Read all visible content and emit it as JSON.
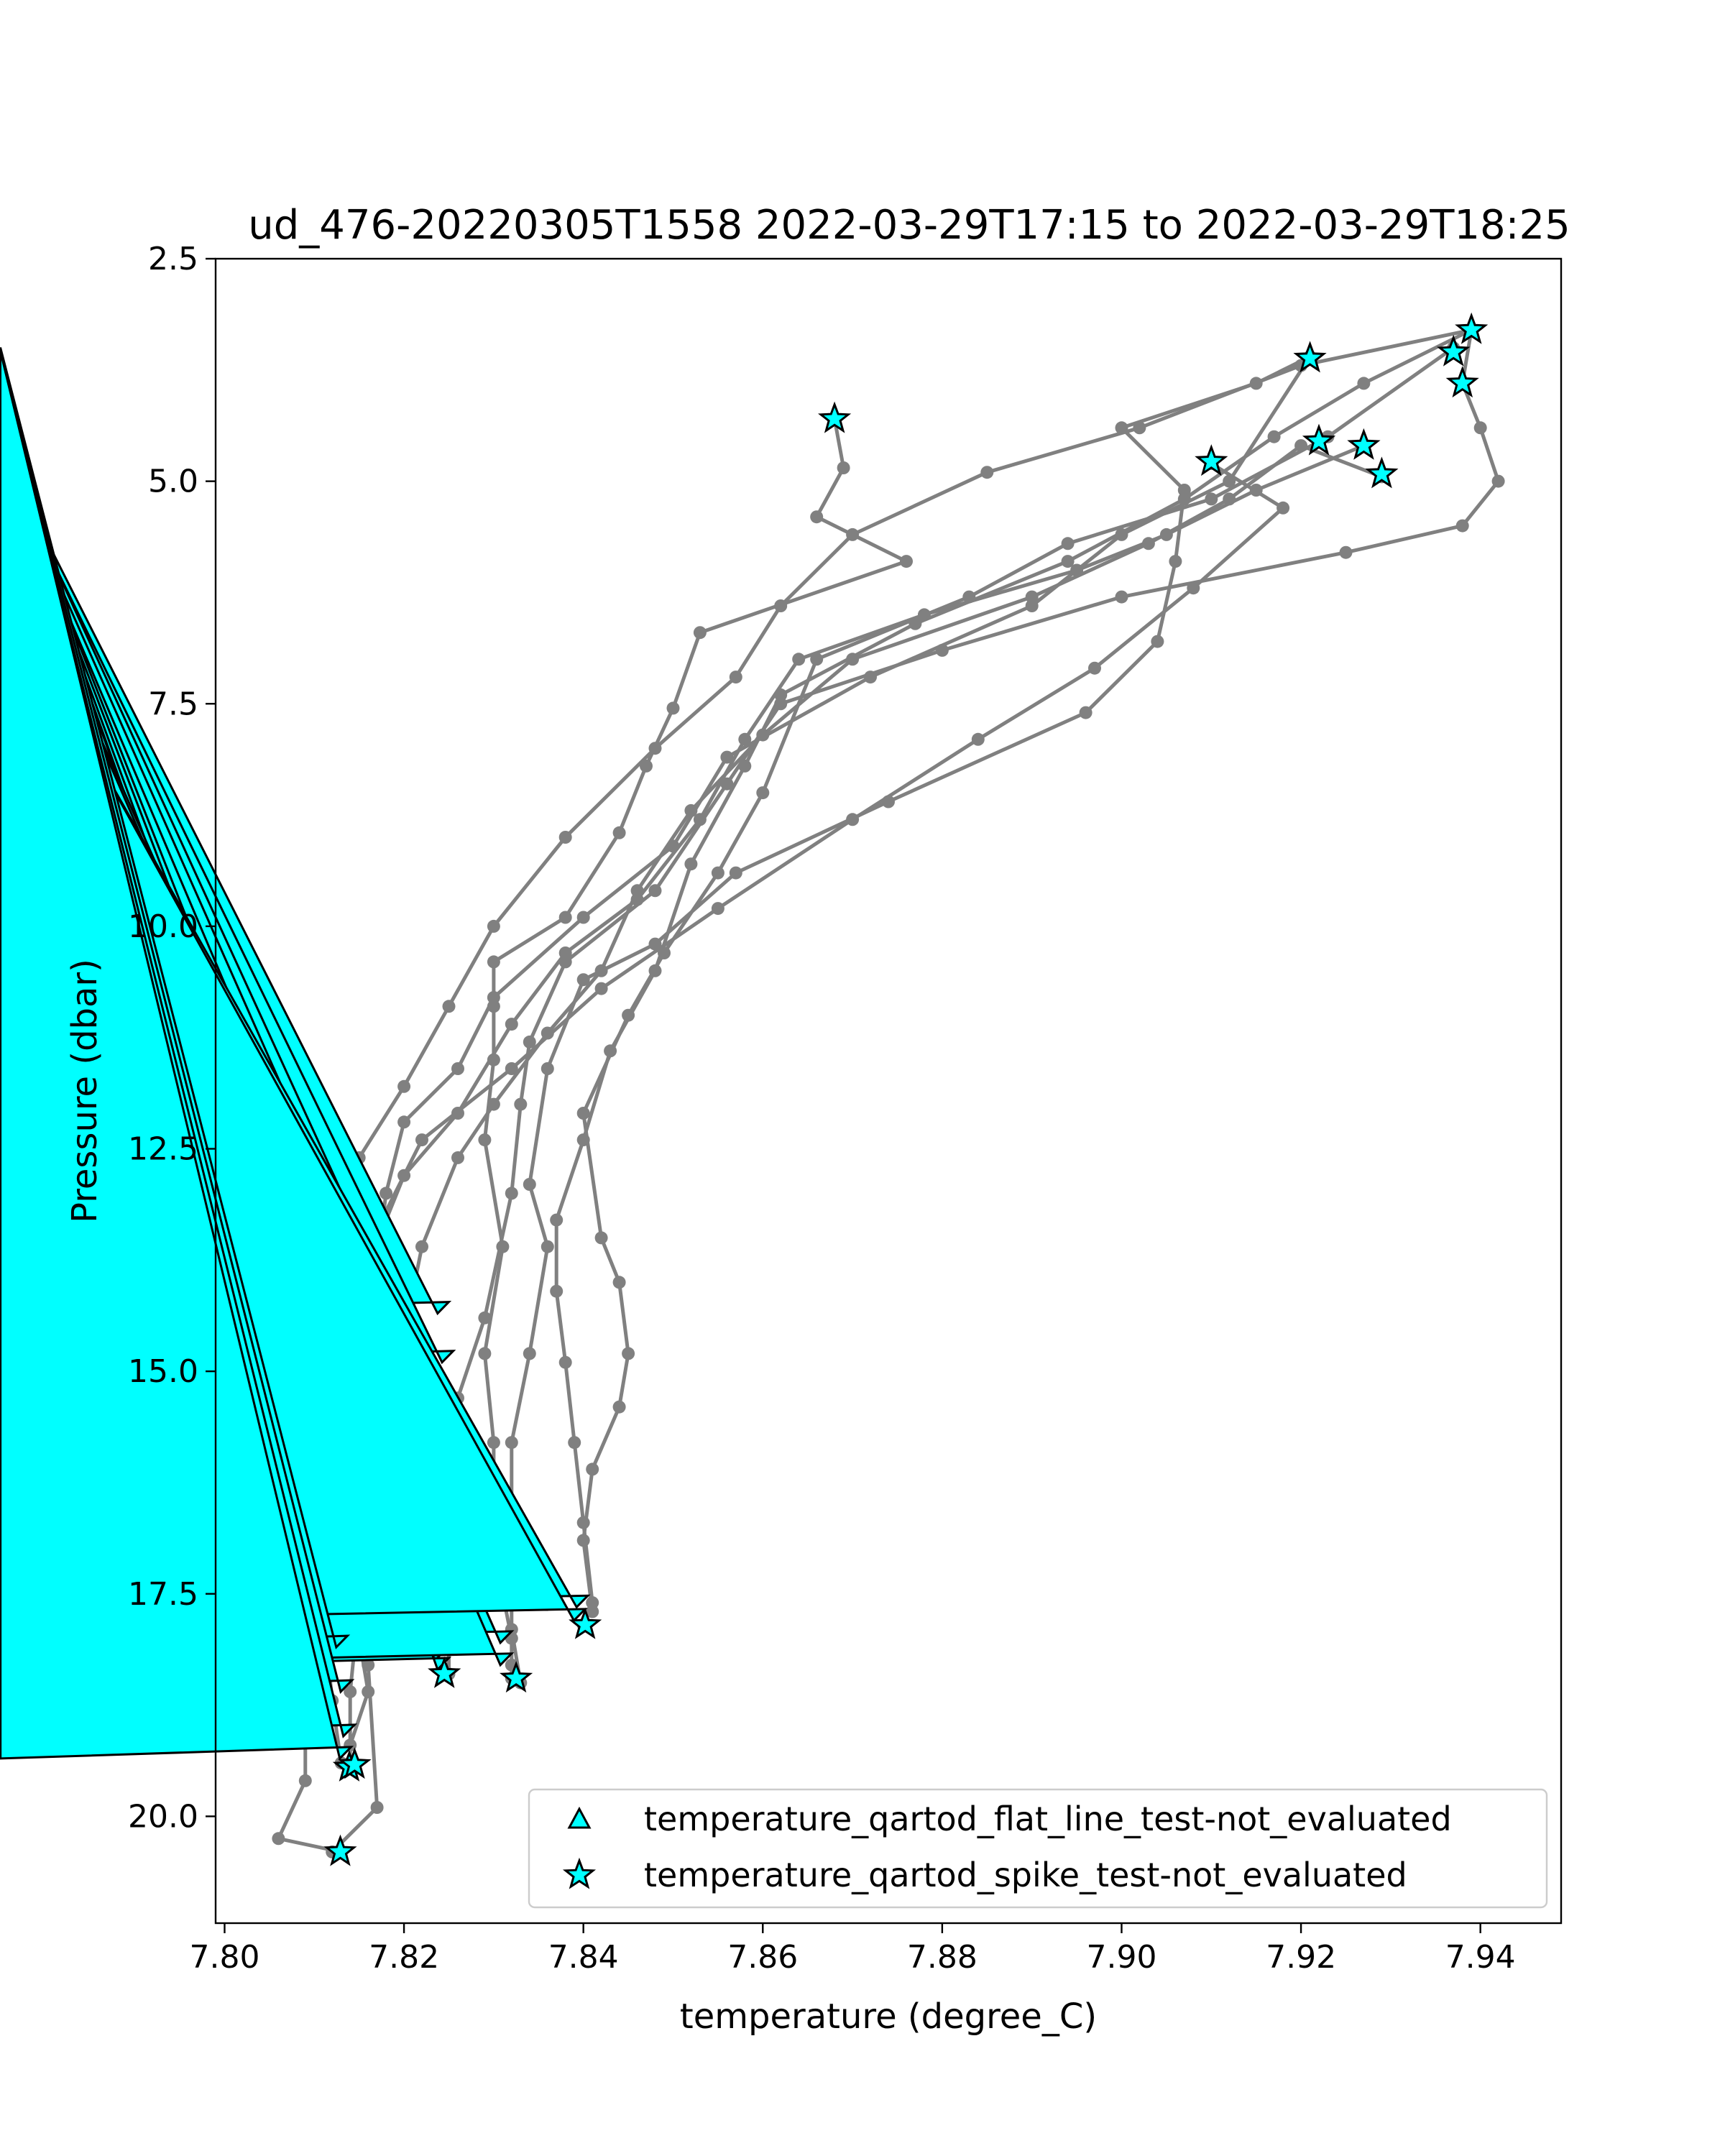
{
  "chart_data": {
    "type": "line",
    "title": "ud_476-20220305T1558 2022-03-29T17:15 to 2022-03-29T18:25",
    "xlabel": "temperature (degree_C)",
    "ylabel": "Pressure (dbar)",
    "xlim": [
      7.799,
      7.949
    ],
    "ylim": [
      21.2,
      2.5
    ],
    "y_inverted": true,
    "grid": false,
    "legend_placement": "lower right",
    "xticks": [
      "7.80",
      "7.82",
      "7.84",
      "7.86",
      "7.88",
      "7.90",
      "7.92",
      "7.94"
    ],
    "xtick_values": [
      7.8,
      7.82,
      7.84,
      7.86,
      7.88,
      7.9,
      7.92,
      7.94
    ],
    "yticks": [
      "2.5",
      "5.0",
      "7.5",
      "10.0",
      "12.5",
      "15.0",
      "17.5",
      "20.0"
    ],
    "ytick_values": [
      2.5,
      5.0,
      7.5,
      10.0,
      12.5,
      15.0,
      17.5,
      20.0
    ],
    "colors": {
      "line": "#808080",
      "marker_fill": "#00ffff",
      "marker_edge": "#000000"
    },
    "series": [
      {
        "points": [
          [
            7.868,
            4.3
          ],
          [
            7.869,
            4.85
          ],
          [
            7.866,
            5.4
          ],
          [
            7.876,
            5.9
          ],
          [
            7.853,
            6.7
          ],
          [
            7.85,
            7.55
          ],
          [
            7.847,
            8.2
          ],
          [
            7.844,
            8.95
          ],
          [
            7.838,
            9.9
          ],
          [
            7.83,
            10.4
          ],
          [
            7.83,
            10.9
          ],
          [
            7.83,
            11.5
          ],
          [
            7.829,
            12.4
          ],
          [
            7.831,
            13.6
          ],
          [
            7.829,
            14.8
          ],
          [
            7.83,
            15.8
          ],
          [
            7.83,
            16.6
          ],
          [
            7.831,
            17.5
          ],
          [
            7.832,
            18.0
          ],
          [
            7.832,
            18.3
          ],
          [
            7.832,
            18.45
          ]
        ]
      },
      {
        "points": [
          [
            7.921,
            3.6
          ],
          [
            7.915,
            3.9
          ],
          [
            7.9,
            4.4
          ],
          [
            7.907,
            5.1
          ],
          [
            7.906,
            5.9
          ],
          [
            7.904,
            6.8
          ],
          [
            7.896,
            7.6
          ],
          [
            7.874,
            8.6
          ],
          [
            7.857,
            9.4
          ],
          [
            7.848,
            10.2
          ],
          [
            7.84,
            10.6
          ],
          [
            7.836,
            11.6
          ],
          [
            7.834,
            12.9
          ],
          [
            7.836,
            13.6
          ],
          [
            7.834,
            14.8
          ],
          [
            7.832,
            15.8
          ],
          [
            7.832,
            16.8
          ],
          [
            7.832,
            17.9
          ],
          [
            7.833,
            18.5
          ]
        ]
      },
      {
        "points": [
          [
            7.939,
            3.3
          ],
          [
            7.927,
            3.9
          ],
          [
            7.917,
            4.5
          ],
          [
            7.907,
            5.2
          ],
          [
            7.894,
            5.9
          ],
          [
            7.877,
            6.6
          ],
          [
            7.862,
            7.4
          ],
          [
            7.858,
            8.2
          ],
          [
            7.852,
            9.3
          ],
          [
            7.848,
            10.5
          ],
          [
            7.843,
            11.4
          ],
          [
            7.84,
            12.4
          ],
          [
            7.837,
            13.3
          ],
          [
            7.837,
            14.1
          ],
          [
            7.838,
            14.9
          ],
          [
            7.839,
            15.8
          ],
          [
            7.84,
            16.7
          ],
          [
            7.841,
            17.6
          ],
          [
            7.84,
            17.85
          ]
        ]
      },
      {
        "points": [
          [
            7.937,
            3.5
          ],
          [
            7.923,
            4.5
          ],
          [
            7.91,
            5.2
          ],
          [
            7.894,
            5.7
          ],
          [
            7.883,
            6.3
          ],
          [
            7.866,
            7.0
          ],
          [
            7.86,
            8.5
          ],
          [
            7.855,
            9.4
          ],
          [
            7.849,
            10.3
          ],
          [
            7.845,
            11.0
          ],
          [
            7.84,
            12.1
          ],
          [
            7.842,
            13.5
          ],
          [
            7.844,
            14.0
          ],
          [
            7.845,
            14.8
          ],
          [
            7.844,
            15.4
          ],
          [
            7.841,
            16.1
          ],
          [
            7.84,
            16.9
          ],
          [
            7.841,
            17.7
          ]
        ]
      },
      {
        "points": [
          [
            7.939,
            3.3
          ],
          [
            7.938,
            3.9
          ],
          [
            7.94,
            4.4
          ],
          [
            7.942,
            5.0
          ],
          [
            7.938,
            5.5
          ],
          [
            7.925,
            5.8
          ],
          [
            7.9,
            6.3
          ],
          [
            7.88,
            6.9
          ],
          [
            7.862,
            7.5
          ],
          [
            7.856,
            8.4
          ],
          [
            7.848,
            9.6
          ],
          [
            7.838,
            10.4
          ],
          [
            7.834,
            11.3
          ],
          [
            7.833,
            12.0
          ],
          [
            7.832,
            13.0
          ],
          [
            7.829,
            14.4
          ],
          [
            7.826,
            15.3
          ],
          [
            7.825,
            16.1
          ],
          [
            7.826,
            17.0
          ],
          [
            7.825,
            18.0
          ],
          [
            7.825,
            18.4
          ]
        ]
      },
      {
        "points": [
          [
            7.929,
            4.95
          ],
          [
            7.92,
            4.6
          ],
          [
            7.912,
            5.2
          ],
          [
            7.903,
            5.7
          ],
          [
            7.89,
            6.3
          ],
          [
            7.87,
            7.0
          ],
          [
            7.86,
            7.85
          ],
          [
            7.852,
            8.7
          ],
          [
            7.846,
            9.6
          ],
          [
            7.842,
            10.5
          ],
          [
            7.836,
            11.2
          ],
          [
            7.83,
            12.0
          ],
          [
            7.826,
            12.6
          ],
          [
            7.822,
            13.6
          ],
          [
            7.82,
            14.6
          ],
          [
            7.817,
            15.6
          ],
          [
            7.816,
            16.6
          ],
          [
            7.815,
            17.6
          ],
          [
            7.814,
            18.6
          ],
          [
            7.814,
            19.4
          ]
        ]
      },
      {
        "points": [
          [
            7.927,
            4.6
          ],
          [
            7.915,
            5.1
          ],
          [
            7.905,
            5.6
          ],
          [
            7.895,
            6.0
          ],
          [
            7.878,
            6.5
          ],
          [
            7.864,
            7.0
          ],
          [
            7.858,
            7.9
          ],
          [
            7.853,
            8.8
          ],
          [
            7.846,
            9.7
          ],
          [
            7.838,
            10.3
          ],
          [
            7.832,
            11.1
          ],
          [
            7.826,
            12.1
          ],
          [
            7.82,
            12.8
          ],
          [
            7.816,
            13.8
          ],
          [
            7.814,
            15.0
          ],
          [
            7.813,
            16.0
          ],
          [
            7.812,
            16.9
          ],
          [
            7.811,
            17.7
          ],
          [
            7.812,
            18.7
          ],
          [
            7.813,
            19.4
          ]
        ]
      },
      {
        "points": [
          [
            7.91,
            4.8
          ],
          [
            7.918,
            5.3
          ],
          [
            7.908,
            6.2
          ],
          [
            7.897,
            7.1
          ],
          [
            7.884,
            7.9
          ],
          [
            7.87,
            8.8
          ],
          [
            7.855,
            9.8
          ],
          [
            7.842,
            10.7
          ],
          [
            7.832,
            11.6
          ],
          [
            7.822,
            12.4
          ],
          [
            7.817,
            13.4
          ],
          [
            7.815,
            14.2
          ],
          [
            7.814,
            15.1
          ],
          [
            7.815,
            16.0
          ],
          [
            7.816,
            17.0
          ],
          [
            7.815,
            18.0
          ],
          [
            7.816,
            18.6
          ],
          [
            7.814,
            19.2
          ]
        ]
      },
      {
        "points": [
          [
            7.921,
            3.6
          ],
          [
            7.912,
            5.0
          ],
          [
            7.9,
            5.6
          ],
          [
            7.89,
            6.4
          ],
          [
            7.872,
            7.2
          ],
          [
            7.856,
            8.1
          ],
          [
            7.85,
            9.1
          ],
          [
            7.84,
            9.9
          ],
          [
            7.83,
            10.8
          ],
          [
            7.826,
            11.6
          ],
          [
            7.82,
            12.2
          ],
          [
            7.818,
            13.0
          ],
          [
            7.817,
            13.8
          ],
          [
            7.818,
            14.7
          ],
          [
            7.817,
            15.6
          ],
          [
            7.818,
            16.5
          ],
          [
            7.819,
            17.3
          ],
          [
            7.816,
            18.3
          ],
          [
            7.817,
            19.9
          ],
          [
            7.812,
            20.4
          ]
        ]
      },
      {
        "points": [
          [
            7.939,
            3.3
          ],
          [
            7.92,
            3.7
          ],
          [
            7.902,
            4.4
          ],
          [
            7.885,
            4.9
          ],
          [
            7.87,
            5.6
          ],
          [
            7.862,
            6.4
          ],
          [
            7.857,
            7.2
          ],
          [
            7.848,
            8.0
          ],
          [
            7.838,
            9.0
          ],
          [
            7.83,
            10.0
          ],
          [
            7.825,
            10.9
          ],
          [
            7.82,
            11.8
          ],
          [
            7.815,
            12.6
          ],
          [
            7.812,
            13.4
          ],
          [
            7.811,
            14.3
          ],
          [
            7.81,
            15.2
          ],
          [
            7.81,
            16.2
          ],
          [
            7.809,
            17.1
          ],
          [
            7.808,
            18.0
          ],
          [
            7.809,
            18.9
          ],
          [
            7.809,
            19.6
          ],
          [
            7.806,
            20.25
          ],
          [
            7.813,
            20.4
          ]
        ]
      }
    ],
    "flags": {
      "flat_line": {
        "label": "temperature_qartod_flat_line_test-not_evaluated",
        "marker": "triangle",
        "points": [
          [
            7.825,
            14.35
          ],
          [
            7.8255,
            14.9
          ],
          [
            7.8248,
            15.3
          ],
          [
            7.8252,
            15.8
          ],
          [
            7.8257,
            16.45
          ],
          [
            7.8245,
            16.95
          ],
          [
            7.8247,
            17.35
          ],
          [
            7.8245,
            17.85
          ],
          [
            7.8247,
            18.25
          ],
          [
            7.825,
            18.35
          ],
          [
            7.832,
            18.05
          ],
          [
            7.832,
            18.3
          ],
          [
            7.8405,
            17.65
          ],
          [
            7.8402,
            17.8
          ],
          [
            7.8137,
            18.1
          ],
          [
            7.8142,
            18.6
          ],
          [
            7.8145,
            19.1
          ],
          [
            7.8141,
            19.35
          ]
        ]
      },
      "spike": {
        "label": "temperature_qartod_spike_test-not_evaluated",
        "marker": "star",
        "points": [
          [
            7.868,
            4.3
          ],
          [
            7.921,
            3.62
          ],
          [
            7.939,
            3.3
          ],
          [
            7.937,
            3.55
          ],
          [
            7.938,
            3.9
          ],
          [
            7.922,
            4.55
          ],
          [
            7.927,
            4.6
          ],
          [
            7.929,
            4.92
          ],
          [
            7.91,
            4.78
          ],
          [
            7.8245,
            18.4
          ],
          [
            7.8325,
            18.45
          ],
          [
            7.8402,
            17.85
          ],
          [
            7.8139,
            19.45
          ],
          [
            7.8145,
            19.42
          ],
          [
            7.8129,
            20.4
          ]
        ]
      }
    }
  }
}
